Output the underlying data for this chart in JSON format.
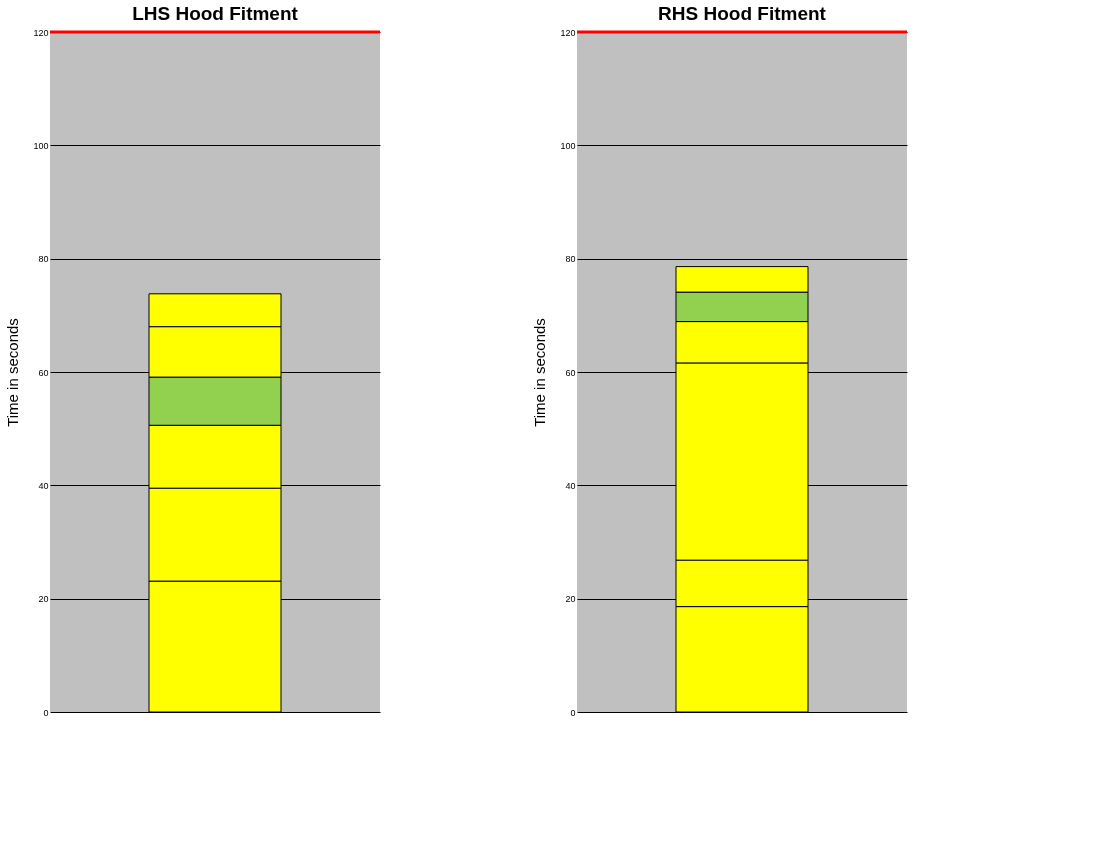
{
  "chart_data": [
    {
      "type": "bar",
      "stacked": true,
      "title": "LHS Hood Fitment",
      "ylabel": "Time in seconds",
      "categories": [
        null
      ],
      "series": [
        {
          "color": "#ffff00",
          "values": [
            23.1
          ]
        },
        {
          "color": "#ffff00",
          "values": [
            16.4
          ]
        },
        {
          "color": "#ffff00",
          "values": [
            11.1
          ]
        },
        {
          "color": "#92d050",
          "values": [
            8.5
          ]
        },
        {
          "color": "#ffff00",
          "values": [
            8.9
          ]
        },
        {
          "color": "#ffff00",
          "values": [
            5.8
          ]
        }
      ],
      "ylim": [
        0,
        120
      ],
      "yticks": [
        0,
        20,
        40,
        60,
        80,
        100,
        120
      ],
      "grid": "y",
      "legend": false,
      "tick_labels": "y",
      "ref_lines": [
        {
          "axis": "y",
          "value": 120,
          "color": "#ff0000"
        }
      ]
    },
    {
      "type": "bar",
      "stacked": true,
      "title": "RHS Hood Fitment",
      "ylabel": "Time in seconds",
      "categories": [
        null
      ],
      "series": [
        {
          "color": "#ffff00",
          "values": [
            18.6
          ]
        },
        {
          "color": "#ffff00",
          "values": [
            8.2
          ]
        },
        {
          "color": "#ffff00",
          "values": [
            34.8
          ]
        },
        {
          "color": "#ffff00",
          "values": [
            7.3
          ]
        },
        {
          "color": "#92d050",
          "values": [
            5.2
          ]
        },
        {
          "color": "#ffff00",
          "values": [
            4.5
          ]
        }
      ],
      "ylim": [
        0,
        120
      ],
      "yticks": [
        0,
        20,
        40,
        60,
        80,
        100,
        120
      ],
      "grid": "y",
      "legend": false,
      "tick_labels": "y",
      "ref_lines": [
        {
          "axis": "y",
          "value": 120,
          "color": "#ff0000"
        }
      ]
    }
  ]
}
